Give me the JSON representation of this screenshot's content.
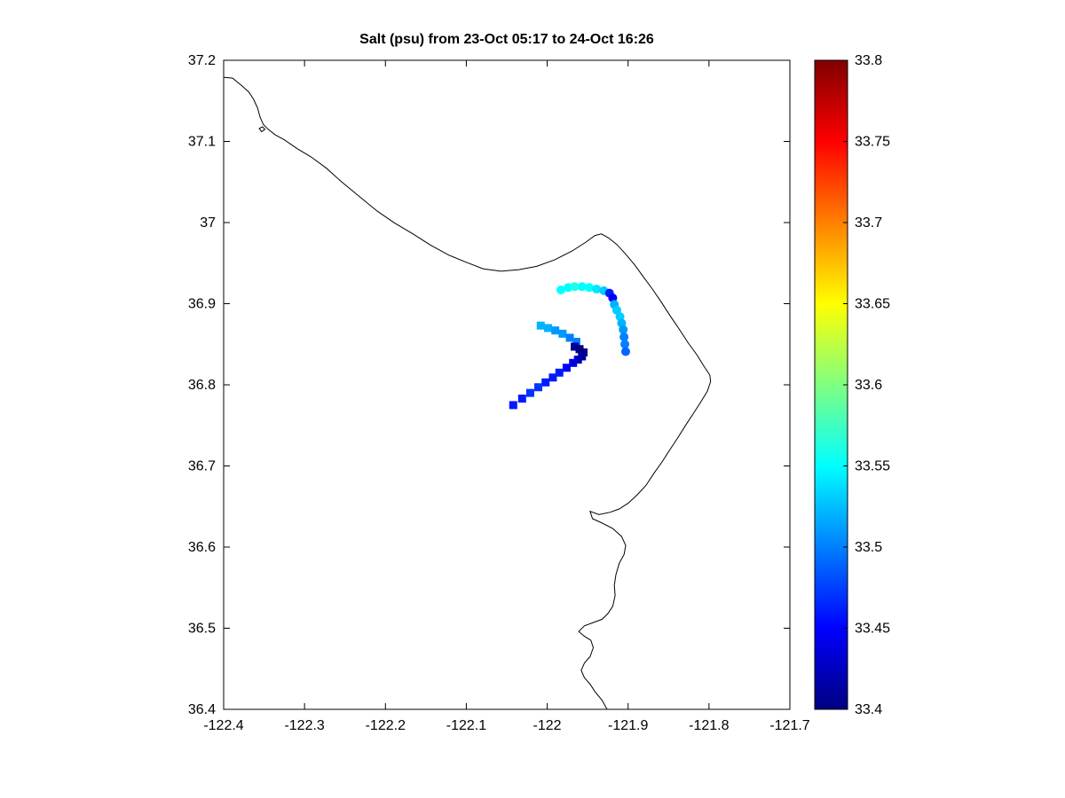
{
  "figure": {
    "background": "#ffffff",
    "axes_color": "#000000"
  },
  "chart_data": {
    "type": "scatter",
    "title": "Salt (psu) from 23-Oct 05:17 to 24-Oct 16:26",
    "xlabel": "",
    "ylabel": "",
    "grid": false,
    "xlim": [
      -122.4,
      -121.7
    ],
    "ylim": [
      36.4,
      37.2
    ],
    "xticks": [
      -122.4,
      -122.3,
      -122.2,
      -122.1,
      -122.0,
      -121.9,
      -121.8,
      -121.7
    ],
    "xtick_labels": [
      "-122.4",
      "-122.3",
      "-122.2",
      "-122.1",
      "-122",
      "-121.9",
      "-121.8",
      "-121.7"
    ],
    "yticks": [
      36.4,
      36.5,
      36.6,
      36.7,
      36.8,
      36.9,
      37.0,
      37.1,
      37.2
    ],
    "ytick_labels": [
      "36.4",
      "36.5",
      "36.6",
      "36.7",
      "36.8",
      "36.9",
      "37",
      "37.1",
      "37.2"
    ],
    "colorbar": {
      "colormap": "jet",
      "position": "right",
      "min": 33.4,
      "max": 33.8,
      "ticks": [
        33.4,
        33.45,
        33.5,
        33.55,
        33.6,
        33.65,
        33.7,
        33.75,
        33.8
      ],
      "tick_labels": [
        "33.4",
        "33.45",
        "33.5",
        "33.55",
        "33.6",
        "33.65",
        "33.7",
        "33.75",
        "33.8"
      ]
    },
    "series": [
      {
        "name": "glider-track-squares",
        "marker": "square",
        "marker_size": 9,
        "points": [
          [
            -122.008,
            36.873,
            33.52
          ],
          [
            -121.999,
            36.87,
            33.52
          ],
          [
            -121.99,
            36.867,
            33.51
          ],
          [
            -121.981,
            36.863,
            33.51
          ],
          [
            -121.972,
            36.858,
            33.5
          ],
          [
            -121.964,
            36.853,
            33.5
          ],
          [
            -121.966,
            36.847,
            33.41
          ],
          [
            -121.96,
            36.844,
            33.4
          ],
          [
            -121.955,
            36.84,
            33.4
          ],
          [
            -121.957,
            36.835,
            33.41
          ],
          [
            -121.962,
            36.831,
            33.42
          ],
          [
            -121.968,
            36.827,
            33.44
          ],
          [
            -121.976,
            36.821,
            33.45
          ],
          [
            -121.985,
            36.815,
            33.46
          ],
          [
            -121.993,
            36.809,
            33.46
          ],
          [
            -122.002,
            36.803,
            33.46
          ],
          [
            -122.011,
            36.797,
            33.47
          ],
          [
            -122.021,
            36.79,
            33.47
          ],
          [
            -122.031,
            36.783,
            33.46
          ],
          [
            -122.042,
            36.775,
            33.46
          ]
        ]
      },
      {
        "name": "glider-track-circles",
        "marker": "circle",
        "marker_size": 10,
        "points": [
          [
            -121.983,
            36.917,
            33.55
          ],
          [
            -121.974,
            36.92,
            33.55
          ],
          [
            -121.966,
            36.921,
            33.56
          ],
          [
            -121.957,
            36.921,
            33.55
          ],
          [
            -121.948,
            36.92,
            33.55
          ],
          [
            -121.939,
            36.918,
            33.54
          ],
          [
            -121.93,
            36.916,
            33.53
          ],
          [
            -121.923,
            36.913,
            33.46
          ],
          [
            -121.919,
            36.907,
            33.45
          ],
          [
            -121.917,
            36.899,
            33.52
          ],
          [
            -121.914,
            36.892,
            33.53
          ],
          [
            -121.91,
            36.884,
            33.53
          ],
          [
            -121.908,
            36.876,
            33.52
          ],
          [
            -121.906,
            36.868,
            33.51
          ],
          [
            -121.905,
            36.859,
            33.5
          ],
          [
            -121.904,
            36.85,
            33.5
          ],
          [
            -121.903,
            36.841,
            33.49
          ]
        ]
      }
    ],
    "coastline": [
      [
        -122.4,
        37.179
      ],
      [
        -122.389,
        37.178
      ],
      [
        -122.378,
        37.169
      ],
      [
        -122.369,
        37.161
      ],
      [
        -122.363,
        37.152
      ],
      [
        -122.358,
        37.141
      ],
      [
        -122.355,
        37.13
      ],
      [
        -122.351,
        37.121
      ],
      [
        -122.345,
        37.115
      ],
      [
        -122.336,
        37.108
      ],
      [
        -122.325,
        37.102
      ],
      [
        -122.309,
        37.091
      ],
      [
        -122.292,
        37.081
      ],
      [
        -122.273,
        37.067
      ],
      [
        -122.254,
        37.05
      ],
      [
        -122.232,
        37.032
      ],
      [
        -122.21,
        37.014
      ],
      [
        -122.188,
        36.999
      ],
      [
        -122.166,
        36.986
      ],
      [
        -122.144,
        36.972
      ],
      [
        -122.122,
        36.96
      ],
      [
        -122.1,
        36.951
      ],
      [
        -122.079,
        36.943
      ],
      [
        -122.057,
        36.94
      ],
      [
        -122.035,
        36.942
      ],
      [
        -122.013,
        36.946
      ],
      [
        -121.991,
        36.954
      ],
      [
        -121.969,
        36.965
      ],
      [
        -121.952,
        36.976
      ],
      [
        -121.941,
        36.984
      ],
      [
        -121.933,
        36.986
      ],
      [
        -121.924,
        36.981
      ],
      [
        -121.914,
        36.973
      ],
      [
        -121.903,
        36.961
      ],
      [
        -121.892,
        36.948
      ],
      [
        -121.881,
        36.933
      ],
      [
        -121.87,
        36.918
      ],
      [
        -121.859,
        36.902
      ],
      [
        -121.848,
        36.885
      ],
      [
        -121.837,
        36.869
      ],
      [
        -121.826,
        36.852
      ],
      [
        -121.815,
        36.837
      ],
      [
        -121.807,
        36.824
      ],
      [
        -121.799,
        36.812
      ],
      [
        -121.798,
        36.804
      ],
      [
        -121.802,
        36.792
      ],
      [
        -121.81,
        36.779
      ],
      [
        -121.819,
        36.765
      ],
      [
        -121.829,
        36.75
      ],
      [
        -121.839,
        36.734
      ],
      [
        -121.849,
        36.719
      ],
      [
        -121.858,
        36.705
      ],
      [
        -121.868,
        36.691
      ],
      [
        -121.878,
        36.676
      ],
      [
        -121.889,
        36.664
      ],
      [
        -121.9,
        36.654
      ],
      [
        -121.911,
        36.647
      ],
      [
        -121.922,
        36.643
      ],
      [
        -121.936,
        36.64
      ],
      [
        -121.947,
        36.644
      ],
      [
        -121.944,
        36.635
      ],
      [
        -121.933,
        36.63
      ],
      [
        -121.919,
        36.623
      ],
      [
        -121.908,
        36.613
      ],
      [
        -121.903,
        36.602
      ],
      [
        -121.905,
        36.591
      ],
      [
        -121.911,
        36.58
      ],
      [
        -121.915,
        36.566
      ],
      [
        -121.917,
        36.553
      ],
      [
        -121.916,
        36.54
      ],
      [
        -121.919,
        36.527
      ],
      [
        -121.925,
        36.518
      ],
      [
        -121.932,
        36.511
      ],
      [
        -121.943,
        36.507
      ],
      [
        -121.954,
        36.503
      ],
      [
        -121.961,
        36.496
      ],
      [
        -121.954,
        36.49
      ],
      [
        -121.946,
        36.485
      ],
      [
        -121.943,
        36.476
      ],
      [
        -121.947,
        36.465
      ],
      [
        -121.954,
        36.457
      ],
      [
        -121.958,
        36.448
      ],
      [
        -121.954,
        36.439
      ],
      [
        -121.947,
        36.431
      ],
      [
        -121.941,
        36.422
      ],
      [
        -121.932,
        36.411
      ],
      [
        -121.926,
        36.4
      ]
    ],
    "island": [
      [
        -122.356,
        37.116
      ],
      [
        -122.352,
        37.118
      ],
      [
        -122.349,
        37.115
      ],
      [
        -122.353,
        37.112
      ],
      [
        -122.356,
        37.116
      ]
    ]
  }
}
